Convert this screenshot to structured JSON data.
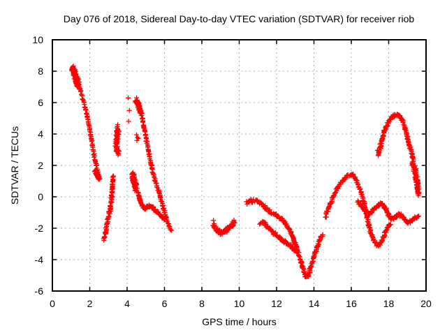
{
  "chart_data": {
    "type": "scatter",
    "title": "Day 076 of 2018, Sidereal Day-to-day VTEC variation (SDTVAR) for receiver riob",
    "xlabel": "GPS time / hours",
    "ylabel": "SDTVAR / TECUs",
    "xlim": [
      0,
      20
    ],
    "ylim": [
      -6,
      10
    ],
    "xticks": [
      0,
      2,
      4,
      6,
      8,
      10,
      12,
      14,
      16,
      18,
      20
    ],
    "yticks": [
      -6,
      -4,
      -2,
      0,
      2,
      4,
      6,
      8,
      10
    ],
    "grid": true,
    "legend_position": "none",
    "marker": "plus",
    "colors": {
      "marker": "#ff0000",
      "grid": "#b0b0b0",
      "axis": "#000000",
      "text": "#000000",
      "background": "#ffffff"
    },
    "series": [
      {
        "name": "trace1-head-blob",
        "points": [
          [
            1.08,
            8.2
          ],
          [
            1.16,
            7.95
          ],
          [
            1.24,
            7.65
          ],
          [
            1.32,
            7.35
          ],
          [
            1.4,
            7.05
          ]
        ],
        "jitter": [
          0.09,
          0.32
        ],
        "n": 110
      },
      {
        "name": "trace1-descent",
        "points": [
          [
            1.44,
            7.0
          ],
          [
            1.52,
            6.7
          ],
          [
            1.62,
            6.3
          ],
          [
            1.72,
            5.85
          ],
          [
            1.82,
            5.35
          ],
          [
            1.92,
            4.75
          ],
          [
            2.02,
            4.1
          ],
          [
            2.12,
            3.4
          ],
          [
            2.22,
            2.75
          ],
          [
            2.32,
            2.15
          ],
          [
            2.42,
            1.6
          ],
          [
            2.5,
            1.2
          ]
        ],
        "jitter": [
          0.035,
          0.14
        ],
        "n": 85
      },
      {
        "name": "trace1-tail-blob",
        "points": [
          [
            2.3,
            1.7
          ],
          [
            2.4,
            1.4
          ],
          [
            2.5,
            1.15
          ]
        ],
        "jitter": [
          0.07,
          0.2
        ],
        "n": 40
      },
      {
        "name": "trace2-descent",
        "points": [
          [
            3.25,
            1.4
          ],
          [
            3.22,
            0.85
          ],
          [
            3.19,
            0.3
          ],
          [
            3.15,
            -0.25
          ],
          [
            3.1,
            -0.7
          ],
          [
            3.04,
            -1.1
          ],
          [
            2.97,
            -1.5
          ],
          [
            2.9,
            -1.9
          ],
          [
            2.84,
            -2.3
          ],
          [
            2.78,
            -2.6
          ],
          [
            2.74,
            -2.75
          ]
        ],
        "jitter": [
          0.045,
          0.12
        ],
        "n": 85
      },
      {
        "name": "cluster-3.5-vertical",
        "points": [
          [
            3.52,
            4.4
          ],
          [
            3.47,
            3.9
          ],
          [
            3.44,
            3.4
          ],
          [
            3.46,
            2.95
          ],
          [
            3.5,
            2.7
          ]
        ],
        "jitter": [
          0.1,
          0.22
        ],
        "n": 75
      },
      {
        "name": "scatter-4.1-singles",
        "points_exact": [
          [
            4.06,
            6.3
          ],
          [
            4.12,
            5.5
          ],
          [
            4.08,
            4.8
          ],
          [
            4.43,
            6.1
          ],
          [
            4.5,
            3.95
          ],
          [
            4.55,
            3.78
          ],
          [
            4.52,
            3.58
          ],
          [
            4.6,
            3.72
          ]
        ]
      },
      {
        "name": "trace3-peak-blob",
        "points": [
          [
            4.5,
            6.15
          ],
          [
            4.6,
            5.85
          ],
          [
            4.7,
            5.5
          ],
          [
            4.76,
            5.3
          ]
        ],
        "jitter": [
          0.08,
          0.25
        ],
        "n": 70
      },
      {
        "name": "trace3-descent",
        "points": [
          [
            4.8,
            5.1
          ],
          [
            4.9,
            4.45
          ],
          [
            5.0,
            3.8
          ],
          [
            5.1,
            3.2
          ],
          [
            5.2,
            2.6
          ],
          [
            5.3,
            2.0
          ],
          [
            5.4,
            1.4
          ],
          [
            5.5,
            1.0
          ],
          [
            5.6,
            0.65
          ],
          [
            5.7,
            0.3
          ],
          [
            5.8,
            -0.05
          ],
          [
            5.9,
            -0.5
          ],
          [
            6.0,
            -0.95
          ],
          [
            6.1,
            -1.35
          ],
          [
            6.2,
            -1.7
          ],
          [
            6.3,
            -2.0
          ],
          [
            6.36,
            -2.15
          ]
        ],
        "jitter": [
          0.035,
          0.13
        ],
        "n": 115
      },
      {
        "name": "cluster-4.4-blob",
        "points": [
          [
            4.3,
            1.45
          ],
          [
            4.35,
            1.1
          ],
          [
            4.42,
            0.75
          ],
          [
            4.5,
            0.5
          ]
        ],
        "jitter": [
          0.1,
          0.24
        ],
        "n": 75
      },
      {
        "name": "trace4-wavy",
        "points": [
          [
            4.58,
            0.3
          ],
          [
            4.66,
            -0.05
          ],
          [
            4.76,
            -0.4
          ],
          [
            4.86,
            -0.65
          ],
          [
            4.96,
            -0.75
          ],
          [
            5.08,
            -0.62
          ],
          [
            5.2,
            -0.55
          ],
          [
            5.35,
            -0.65
          ],
          [
            5.5,
            -0.82
          ],
          [
            5.65,
            -1.0
          ],
          [
            5.8,
            -1.2
          ],
          [
            5.95,
            -1.38
          ],
          [
            6.05,
            -1.45
          ]
        ],
        "jitter": [
          0.04,
          0.11
        ],
        "n": 80
      },
      {
        "name": "singles-8.6",
        "points_exact": [
          [
            8.62,
            -1.5
          ],
          [
            8.66,
            -1.72
          ]
        ]
      },
      {
        "name": "cluster-9-dip",
        "points": [
          [
            8.6,
            -1.8
          ],
          [
            8.75,
            -2.05
          ],
          [
            8.9,
            -2.2
          ],
          [
            9.05,
            -2.3
          ],
          [
            9.2,
            -2.25
          ],
          [
            9.35,
            -2.05
          ],
          [
            9.5,
            -1.9
          ],
          [
            9.62,
            -1.75
          ],
          [
            9.75,
            -1.6
          ]
        ],
        "jitter": [
          0.06,
          0.17
        ],
        "n": 100
      },
      {
        "name": "trace5-main-v",
        "points": [
          [
            10.4,
            -0.4
          ],
          [
            10.55,
            -0.22
          ],
          [
            10.7,
            -0.3
          ],
          [
            10.9,
            -0.2
          ],
          [
            11.05,
            -0.3
          ],
          [
            11.25,
            -0.52
          ],
          [
            11.45,
            -0.75
          ],
          [
            11.65,
            -0.95
          ],
          [
            11.85,
            -1.1
          ],
          [
            12.05,
            -1.25
          ],
          [
            12.25,
            -1.4
          ],
          [
            12.45,
            -1.62
          ],
          [
            12.62,
            -1.95
          ],
          [
            12.78,
            -2.35
          ],
          [
            12.95,
            -2.85
          ],
          [
            13.1,
            -3.35
          ],
          [
            13.25,
            -3.9
          ],
          [
            13.38,
            -4.4
          ],
          [
            13.5,
            -4.9
          ],
          [
            13.6,
            -5.15
          ],
          [
            13.68,
            -5.05
          ],
          [
            13.78,
            -4.65
          ],
          [
            13.9,
            -4.2
          ],
          [
            14.02,
            -3.75
          ],
          [
            14.14,
            -3.3
          ],
          [
            14.26,
            -2.9
          ],
          [
            14.38,
            -2.55
          ],
          [
            14.47,
            -2.38
          ]
        ],
        "jitter": [
          0.045,
          0.12
        ],
        "n": 210
      },
      {
        "name": "trace5-lower-branch",
        "points": [
          [
            11.12,
            -1.7
          ],
          [
            11.28,
            -1.58
          ],
          [
            11.45,
            -1.8
          ],
          [
            11.65,
            -2.05
          ],
          [
            11.9,
            -2.35
          ],
          [
            12.15,
            -2.6
          ],
          [
            12.4,
            -2.82
          ],
          [
            12.65,
            -3.05
          ],
          [
            12.9,
            -3.3
          ],
          [
            13.08,
            -3.5
          ]
        ],
        "jitter": [
          0.045,
          0.12
        ],
        "n": 90
      },
      {
        "name": "trace6-arc-and-dip",
        "points": [
          [
            14.62,
            -1.3
          ],
          [
            14.75,
            -0.85
          ],
          [
            14.88,
            -0.45
          ],
          [
            15.0,
            -0.1
          ],
          [
            15.15,
            0.3
          ],
          [
            15.3,
            0.65
          ],
          [
            15.5,
            1.0
          ],
          [
            15.7,
            1.25
          ],
          [
            15.9,
            1.42
          ],
          [
            16.05,
            1.45
          ],
          [
            16.2,
            1.25
          ],
          [
            16.35,
            0.85
          ],
          [
            16.5,
            0.4
          ],
          [
            16.62,
            -0.1
          ],
          [
            16.74,
            -0.7
          ],
          [
            16.85,
            -1.3
          ],
          [
            16.95,
            -1.85
          ],
          [
            17.05,
            -2.3
          ],
          [
            17.18,
            -2.7
          ],
          [
            17.32,
            -3.0
          ],
          [
            17.45,
            -3.1
          ],
          [
            17.58,
            -2.95
          ],
          [
            17.7,
            -2.6
          ],
          [
            17.85,
            -2.2
          ],
          [
            18.0,
            -1.9
          ],
          [
            18.1,
            -1.7
          ]
        ],
        "jitter": [
          0.045,
          0.13
        ],
        "n": 200
      },
      {
        "name": "trace7-band",
        "points": [
          [
            16.35,
            -0.3
          ],
          [
            16.55,
            -0.6
          ],
          [
            16.75,
            -0.9
          ],
          [
            16.95,
            -1.05
          ],
          [
            17.1,
            -0.95
          ],
          [
            17.3,
            -0.7
          ],
          [
            17.5,
            -0.5
          ],
          [
            17.65,
            -0.42
          ],
          [
            17.8,
            -0.7
          ],
          [
            17.95,
            -1.05
          ],
          [
            18.1,
            -1.4
          ],
          [
            18.25,
            -1.4
          ],
          [
            18.4,
            -1.25
          ],
          [
            18.55,
            -1.12
          ],
          [
            18.7,
            -1.2
          ],
          [
            18.85,
            -1.4
          ],
          [
            19.0,
            -1.65
          ],
          [
            19.15,
            -1.6
          ],
          [
            19.3,
            -1.42
          ],
          [
            19.45,
            -1.32
          ],
          [
            19.6,
            -1.3
          ]
        ],
        "jitter": [
          0.045,
          0.12
        ],
        "n": 160
      },
      {
        "name": "trace8-high-arc",
        "points": [
          [
            17.45,
            2.7
          ],
          [
            17.55,
            3.2
          ],
          [
            17.67,
            3.75
          ],
          [
            17.8,
            4.25
          ],
          [
            17.95,
            4.65
          ],
          [
            18.1,
            4.95
          ],
          [
            18.3,
            5.15
          ],
          [
            18.5,
            5.2
          ],
          [
            18.65,
            5.05
          ],
          [
            18.8,
            4.7
          ],
          [
            18.92,
            4.2
          ],
          [
            19.02,
            3.7
          ],
          [
            19.12,
            3.3
          ],
          [
            19.2,
            2.95
          ],
          [
            19.28,
            2.6
          ],
          [
            19.33,
            2.3
          ]
        ],
        "jitter": [
          0.04,
          0.15
        ],
        "n": 140
      },
      {
        "name": "trace8-end-blob",
        "points": [
          [
            19.32,
            2.15
          ],
          [
            19.4,
            1.75
          ],
          [
            19.46,
            1.35
          ],
          [
            19.5,
            0.95
          ],
          [
            19.55,
            0.55
          ],
          [
            19.6,
            0.15
          ]
        ],
        "jitter": [
          0.1,
          0.22
        ],
        "n": 90
      },
      {
        "name": "singles-17.4",
        "points_exact": [
          [
            17.4,
            2.95
          ],
          [
            17.44,
            2.62
          ]
        ]
      }
    ]
  }
}
